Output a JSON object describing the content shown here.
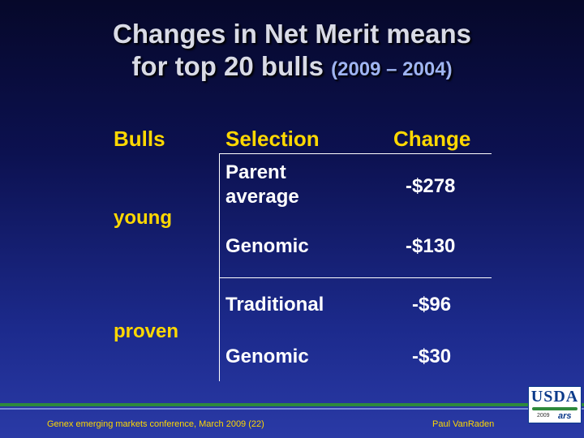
{
  "title": {
    "line1": "Changes in Net Merit means",
    "line2": "for top 20 bulls",
    "years": "(2009 – 2004)"
  },
  "table": {
    "headers": {
      "bulls": "Bulls",
      "selection": "Selection",
      "change": "Change"
    },
    "groups": [
      {
        "label": "young",
        "rows": [
          {
            "selection_line1": "Parent",
            "selection_line2": "average",
            "change": "-$278"
          },
          {
            "selection": "Genomic",
            "change": "-$130"
          }
        ]
      },
      {
        "label": "proven",
        "rows": [
          {
            "selection": "Traditional",
            "change": "-$96"
          },
          {
            "selection": "Genomic",
            "change": "-$30"
          }
        ]
      }
    ]
  },
  "footer": {
    "left": "Genex emerging markets conference, March 2009 (22)",
    "right": "Paul VanRaden"
  },
  "logo": {
    "text": "USDA",
    "year": "2009",
    "ars": "ars"
  },
  "colors": {
    "accent": "#ffd800",
    "green_band": "#2e8a3c",
    "background": "#0c1150"
  }
}
